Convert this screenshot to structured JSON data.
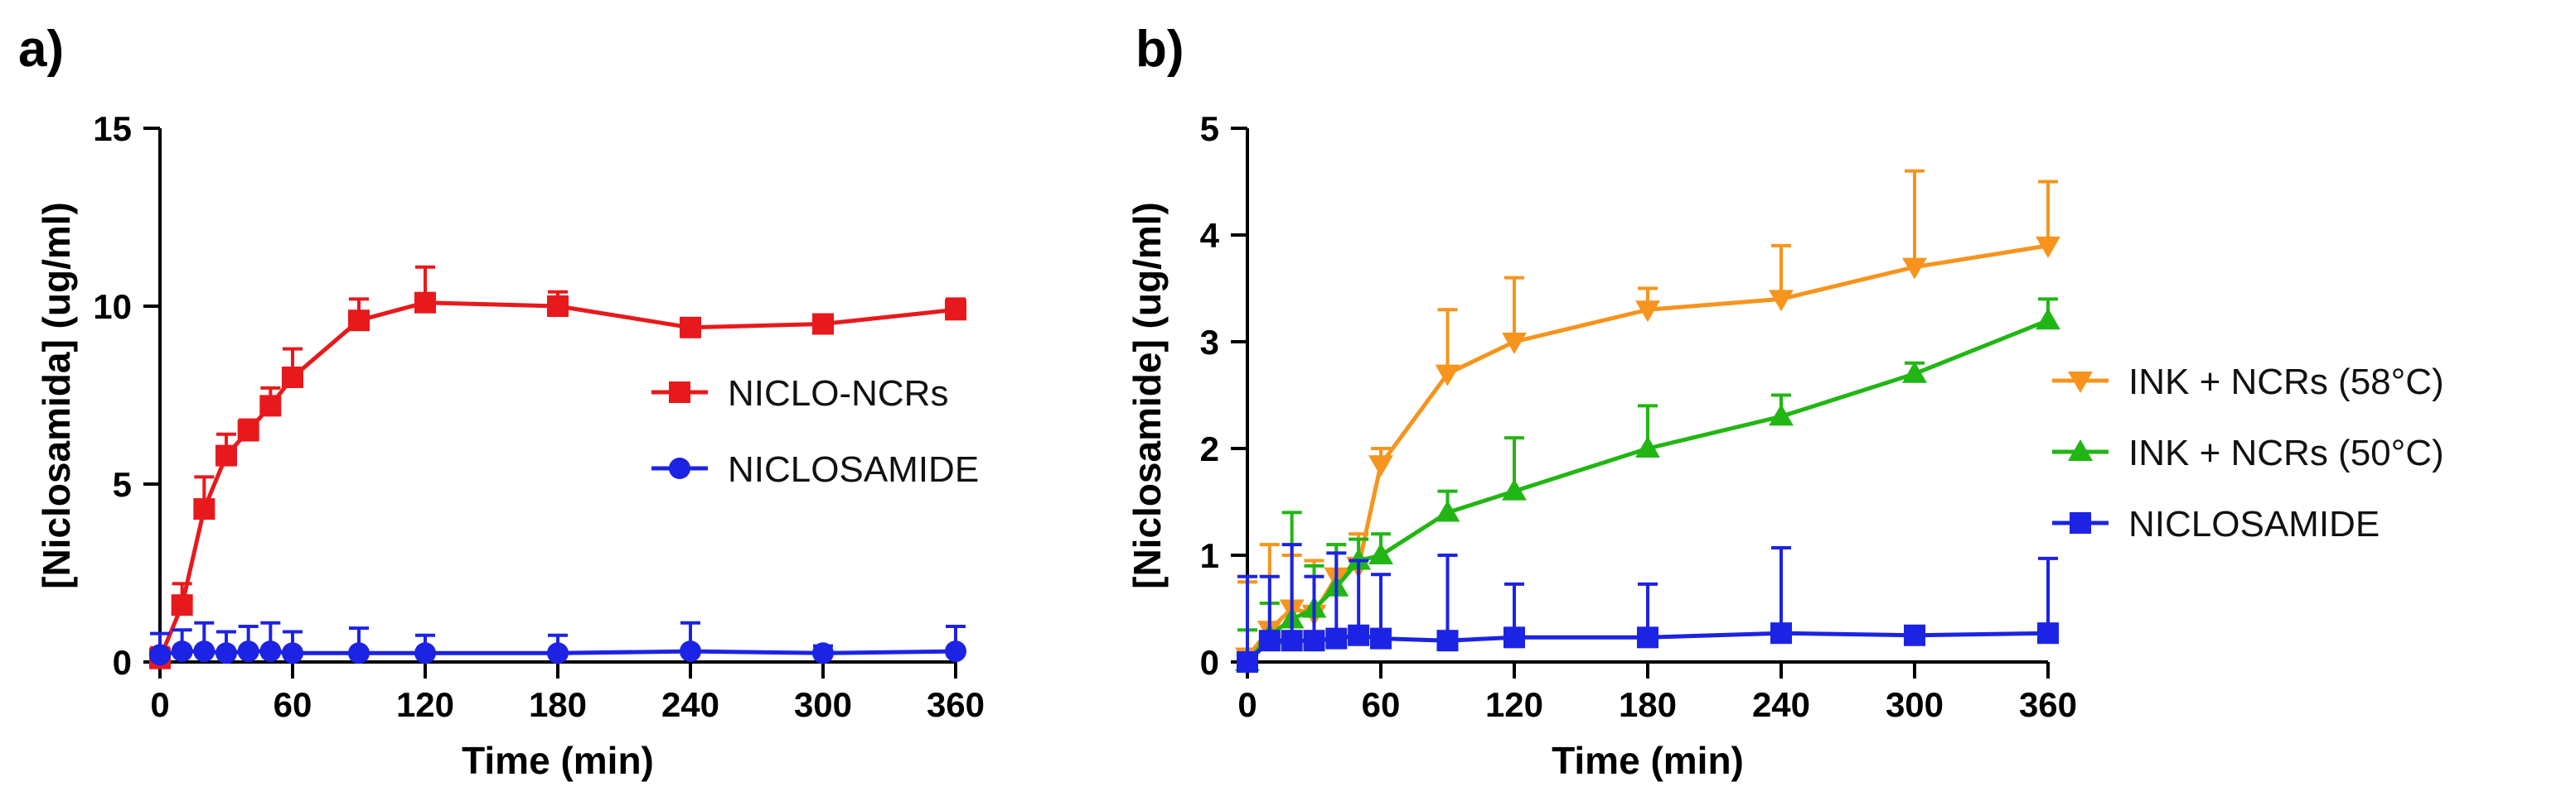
{
  "chart_data": [
    {
      "type": "line",
      "panel_label": "a)",
      "title": "",
      "xlabel": "Time (min)",
      "ylabel": "[Niclosamida] (ug/ml)",
      "xlim": [
        0,
        360
      ],
      "ylim": [
        0,
        15
      ],
      "xticks": [
        0,
        60,
        120,
        180,
        240,
        300,
        360
      ],
      "yticks": [
        0,
        5,
        10,
        15
      ],
      "legend_position": "center-right",
      "series": [
        {
          "name": "NICLO-NCRs",
          "color": "#e8191c",
          "marker": "square",
          "points": [
            {
              "x": 0,
              "y": 0.1,
              "err": 0.3
            },
            {
              "x": 10,
              "y": 1.6,
              "err": 0.6
            },
            {
              "x": 20,
              "y": 4.3,
              "err": 0.9
            },
            {
              "x": 30,
              "y": 5.8,
              "err": 0.6
            },
            {
              "x": 40,
              "y": 6.5,
              "err": 0.3
            },
            {
              "x": 50,
              "y": 7.2,
              "err": 0.5
            },
            {
              "x": 60,
              "y": 8.0,
              "err": 0.8
            },
            {
              "x": 90,
              "y": 9.6,
              "err": 0.6
            },
            {
              "x": 120,
              "y": 10.1,
              "err": 1.0
            },
            {
              "x": 180,
              "y": 10.0,
              "err": 0.4
            },
            {
              "x": 240,
              "y": 9.4,
              "err": 0.2
            },
            {
              "x": 300,
              "y": 9.5,
              "err": 0.2
            },
            {
              "x": 360,
              "y": 9.9,
              "err": 0.3
            }
          ]
        },
        {
          "name": "NICLOSAMIDE",
          "color": "#1c23e4",
          "marker": "circle",
          "points": [
            {
              "x": 0,
              "y": 0.2,
              "err": 0.6
            },
            {
              "x": 10,
              "y": 0.3,
              "err": 0.6
            },
            {
              "x": 20,
              "y": 0.3,
              "err": 0.8
            },
            {
              "x": 30,
              "y": 0.25,
              "err": 0.6
            },
            {
              "x": 40,
              "y": 0.3,
              "err": 0.7
            },
            {
              "x": 50,
              "y": 0.3,
              "err": 0.8
            },
            {
              "x": 60,
              "y": 0.25,
              "err": 0.6
            },
            {
              "x": 90,
              "y": 0.25,
              "err": 0.7
            },
            {
              "x": 120,
              "y": 0.25,
              "err": 0.5
            },
            {
              "x": 180,
              "y": 0.25,
              "err": 0.5
            },
            {
              "x": 240,
              "y": 0.3,
              "err": 0.8
            },
            {
              "x": 300,
              "y": 0.25,
              "err": 0.2
            },
            {
              "x": 360,
              "y": 0.3,
              "err": 0.7
            }
          ]
        }
      ]
    },
    {
      "type": "line",
      "panel_label": "b)",
      "title": "",
      "xlabel": "Time (min)",
      "ylabel": "[Niclosamide] (ug/ml)",
      "xlim": [
        0,
        360
      ],
      "ylim": [
        0,
        5
      ],
      "xticks": [
        0,
        60,
        120,
        180,
        240,
        300,
        360
      ],
      "yticks": [
        0,
        1,
        2,
        3,
        4,
        5
      ],
      "legend_position": "right",
      "series": [
        {
          "name": "INK + NCRs (58°C)",
          "color": "#f7941d",
          "marker": "triangle-down",
          "points": [
            {
              "x": 0,
              "y": 0.05,
              "err": 0.7
            },
            {
              "x": 10,
              "y": 0.3,
              "err": 0.8
            },
            {
              "x": 20,
              "y": 0.5,
              "err": 0.5
            },
            {
              "x": 30,
              "y": 0.45,
              "err": 0.5
            },
            {
              "x": 40,
              "y": 0.8,
              "err": 0.3
            },
            {
              "x": 50,
              "y": 0.9,
              "err": 0.3
            },
            {
              "x": 60,
              "y": 1.85,
              "err": 0.15
            },
            {
              "x": 90,
              "y": 2.7,
              "err": 0.6
            },
            {
              "x": 120,
              "y": 3.0,
              "err": 0.6
            },
            {
              "x": 180,
              "y": 3.3,
              "err": 0.2
            },
            {
              "x": 240,
              "y": 3.4,
              "err": 0.5
            },
            {
              "x": 300,
              "y": 3.7,
              "err": 0.9
            },
            {
              "x": 360,
              "y": 3.9,
              "err": 0.6
            }
          ]
        },
        {
          "name": "INK + NCRs (50°C)",
          "color": "#22b614",
          "marker": "triangle-up",
          "points": [
            {
              "x": 0,
              "y": 0.0,
              "err": 0.3
            },
            {
              "x": 10,
              "y": 0.25,
              "err": 0.3
            },
            {
              "x": 20,
              "y": 0.4,
              "err": 1.0
            },
            {
              "x": 30,
              "y": 0.5,
              "err": 0.4
            },
            {
              "x": 40,
              "y": 0.7,
              "err": 0.4
            },
            {
              "x": 50,
              "y": 0.95,
              "err": 0.2
            },
            {
              "x": 60,
              "y": 1.0,
              "err": 0.2
            },
            {
              "x": 90,
              "y": 1.4,
              "err": 0.2
            },
            {
              "x": 120,
              "y": 1.6,
              "err": 0.5
            },
            {
              "x": 180,
              "y": 2.0,
              "err": 0.4
            },
            {
              "x": 240,
              "y": 2.3,
              "err": 0.2
            },
            {
              "x": 300,
              "y": 2.7,
              "err": 0.1
            },
            {
              "x": 360,
              "y": 3.2,
              "err": 0.2
            }
          ]
        },
        {
          "name": "NICLOSAMIDE",
          "color": "#1c23e4",
          "marker": "square",
          "points": [
            {
              "x": 0,
              "y": 0.0,
              "err": 0.8
            },
            {
              "x": 10,
              "y": 0.2,
              "err": 0.6
            },
            {
              "x": 20,
              "y": 0.2,
              "err": 0.9
            },
            {
              "x": 30,
              "y": 0.2,
              "err": 0.6
            },
            {
              "x": 40,
              "y": 0.22,
              "err": 0.8
            },
            {
              "x": 50,
              "y": 0.25,
              "err": 0.7
            },
            {
              "x": 60,
              "y": 0.22,
              "err": 0.6
            },
            {
              "x": 90,
              "y": 0.2,
              "err": 0.8
            },
            {
              "x": 120,
              "y": 0.23,
              "err": 0.5
            },
            {
              "x": 180,
              "y": 0.23,
              "err": 0.5
            },
            {
              "x": 240,
              "y": 0.27,
              "err": 0.8
            },
            {
              "x": 300,
              "y": 0.25,
              "err": 0.0
            },
            {
              "x": 360,
              "y": 0.27,
              "err": 0.7
            }
          ]
        }
      ]
    }
  ]
}
